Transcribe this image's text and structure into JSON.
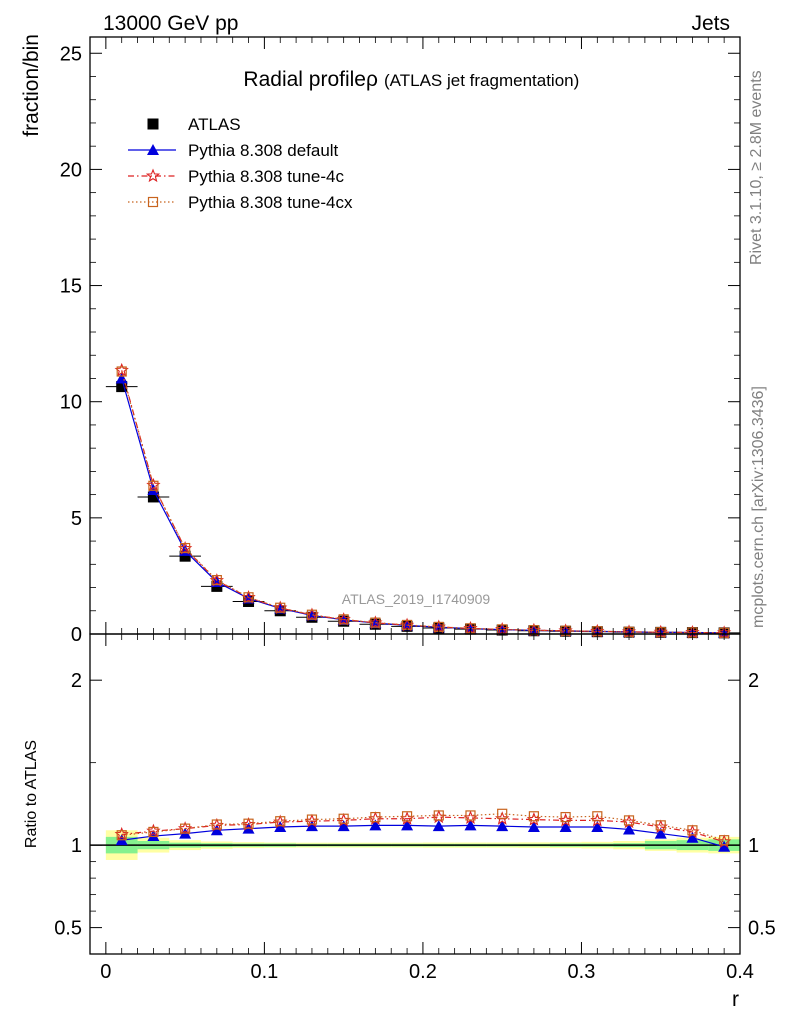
{
  "header": {
    "left": "13000 GeV pp",
    "right": "Jets"
  },
  "side_text": {
    "rivet": "Rivet 3.1.10, ≥ 2.8M events",
    "mcplots": "mcplots.cern.ch [arXiv:1306.3436]"
  },
  "chart_data": [
    {
      "type": "scatter",
      "panel": "main",
      "title": "Radial profile",
      "title_symbol": "ρ",
      "subtitle": "(ATLAS jet fragmentation)",
      "ylabel": "fraction/bin",
      "watermark": "ATLAS_2019_I1740909",
      "xlim": [
        -0.01,
        0.4
      ],
      "ylim": [
        0,
        25.7
      ],
      "x_ticks": [
        "0",
        "0.1",
        "0.2",
        "0.3",
        "0.4"
      ],
      "y_ticks": [
        "0",
        "5",
        "10",
        "15",
        "20",
        "25"
      ],
      "x": [
        0.01,
        0.03,
        0.05,
        0.07,
        0.09,
        0.11,
        0.13,
        0.15,
        0.17,
        0.19,
        0.21,
        0.23,
        0.25,
        0.27,
        0.29,
        0.31,
        0.33,
        0.35,
        0.37,
        0.39
      ],
      "series": [
        {
          "name": "ATLAS",
          "color": "#000000",
          "marker": "square",
          "values": [
            10.65,
            5.9,
            3.35,
            2.05,
            1.4,
            1.0,
            0.72,
            0.55,
            0.42,
            0.33,
            0.26,
            0.21,
            0.17,
            0.14,
            0.12,
            0.1,
            0.08,
            0.07,
            0.06,
            0.05
          ]
        },
        {
          "name": "Pythia 8.308 default",
          "color": "#0000dd",
          "marker": "triangle",
          "line": "solid",
          "values": [
            11.0,
            6.2,
            3.58,
            2.24,
            1.53,
            1.1,
            0.8,
            0.61,
            0.47,
            0.37,
            0.29,
            0.235,
            0.19,
            0.157,
            0.133,
            0.112,
            0.09,
            0.076,
            0.064,
            0.049
          ]
        },
        {
          "name": "Pythia 8.308 tune-4c",
          "color": "#dd2222",
          "marker": "star",
          "line": "dashdot",
          "values": [
            11.35,
            6.4,
            3.68,
            2.3,
            1.57,
            1.12,
            0.82,
            0.62,
            0.48,
            0.38,
            0.3,
            0.24,
            0.195,
            0.16,
            0.136,
            0.115,
            0.092,
            0.077,
            0.065,
            0.051
          ]
        },
        {
          "name": "Pythia 8.308 tune-4cx",
          "color": "#c8641e",
          "marker": "open-square",
          "line": "dotted",
          "values": [
            11.3,
            6.38,
            3.7,
            2.32,
            1.58,
            1.13,
            0.83,
            0.63,
            0.49,
            0.39,
            0.305,
            0.245,
            0.2,
            0.165,
            0.14,
            0.118,
            0.094,
            0.078,
            0.066,
            0.052
          ]
        }
      ]
    },
    {
      "type": "scatter",
      "panel": "ratio",
      "ylabel": "Ratio to ATLAS",
      "xlabel": "r",
      "xlim": [
        -0.01,
        0.4
      ],
      "ylim": [
        0.34,
        2.28
      ],
      "x_ticks": [
        "0",
        "0.1",
        "0.2",
        "0.3",
        "0.4"
      ],
      "y_ticks": [
        "0.5",
        "1",
        "2"
      ],
      "x": [
        0.01,
        0.03,
        0.05,
        0.07,
        0.09,
        0.11,
        0.13,
        0.15,
        0.17,
        0.19,
        0.21,
        0.23,
        0.25,
        0.27,
        0.29,
        0.31,
        0.33,
        0.35,
        0.37,
        0.39
      ],
      "band_stat": [
        0.05,
        0.025,
        0.015,
        0.012,
        0.01,
        0.01,
        0.008,
        0.008,
        0.008,
        0.008,
        0.008,
        0.008,
        0.008,
        0.008,
        0.01,
        0.01,
        0.012,
        0.025,
        0.03,
        0.035
      ],
      "band_total": [
        0.09,
        0.045,
        0.03,
        0.022,
        0.018,
        0.016,
        0.015,
        0.015,
        0.015,
        0.015,
        0.016,
        0.016,
        0.016,
        0.017,
        0.018,
        0.02,
        0.025,
        0.035,
        0.045,
        0.05
      ],
      "series": [
        {
          "name": "Pythia 8.308 default",
          "color": "#0000dd",
          "marker": "triangle",
          "line": "solid",
          "values": [
            1.03,
            1.055,
            1.07,
            1.09,
            1.1,
            1.11,
            1.115,
            1.115,
            1.12,
            1.12,
            1.115,
            1.12,
            1.115,
            1.11,
            1.11,
            1.11,
            1.095,
            1.07,
            1.045,
            0.99
          ]
        },
        {
          "name": "Pythia 8.308 tune-4c",
          "color": "#dd2222",
          "marker": "star",
          "line": "dashdot",
          "values": [
            1.065,
            1.085,
            1.1,
            1.12,
            1.125,
            1.14,
            1.145,
            1.15,
            1.16,
            1.16,
            1.17,
            1.165,
            1.16,
            1.155,
            1.15,
            1.15,
            1.14,
            1.11,
            1.08,
            1.02
          ]
        },
        {
          "name": "Pythia 8.308 tune-4cx",
          "color": "#c8641e",
          "marker": "open-square",
          "line": "dotted",
          "values": [
            1.06,
            1.08,
            1.1,
            1.125,
            1.13,
            1.145,
            1.155,
            1.16,
            1.17,
            1.175,
            1.18,
            1.18,
            1.19,
            1.175,
            1.17,
            1.175,
            1.15,
            1.12,
            1.09,
            1.03
          ]
        }
      ]
    }
  ]
}
